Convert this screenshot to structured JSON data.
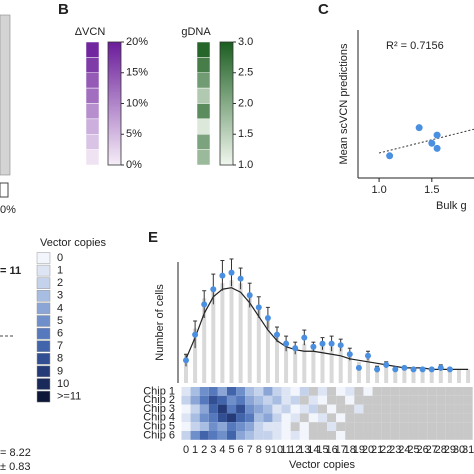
{
  "fragments": [
    "0%",
    "= 11",
    "= 8.22",
    "± 0.83"
  ],
  "chart_data": [
    {
      "type": "colorbar",
      "label": "B",
      "title": "ΔVCN",
      "ylim": [
        0,
        20
      ],
      "yticks": [
        {
          "value": 20,
          "label": "20%"
        },
        {
          "value": 15,
          "label": "15%"
        },
        {
          "value": 10,
          "label": "10%"
        },
        {
          "value": 5,
          "label": "5%"
        },
        {
          "value": 0,
          "label": "0%"
        }
      ],
      "values": [
        19,
        17,
        14,
        12,
        9,
        6,
        4,
        1
      ],
      "colors": [
        "#f6eef8",
        "#6a1b9a"
      ]
    },
    {
      "type": "colorbar",
      "title": "gDNA",
      "ylim": [
        1.0,
        3.0
      ],
      "yticks": [
        {
          "value": 3.0,
          "label": "3.0"
        },
        {
          "value": 2.5,
          "label": "2.5"
        },
        {
          "value": 2.0,
          "label": "2.0"
        },
        {
          "value": 1.5,
          "label": "1.5"
        },
        {
          "value": 1.0,
          "label": "1.0"
        }
      ],
      "values": [
        2.9,
        2.6,
        2.2,
        1.6,
        2.4,
        1.2,
        2.1,
        1.8
      ],
      "colors": [
        "#f1f7ee",
        "#1b5e20"
      ]
    },
    {
      "type": "scatter",
      "label": "C",
      "y_label": "Mean scVCN predictions",
      "x_label": "Bulk g",
      "annotation": "R² = 0.7156",
      "color": "#4a8fe0",
      "x": [
        1.1,
        1.38,
        1.5,
        1.55,
        1.55
      ],
      "values": [
        1.2,
        1.58,
        1.37,
        1.3,
        1.48
      ],
      "xlim": [
        0.8,
        1.9
      ],
      "ylim": [
        0.9,
        2.9
      ],
      "xticks": [
        {
          "value": 1.0,
          "label": "1.0"
        },
        1.5
      ]
    },
    {
      "type": "bar",
      "label": "E",
      "y_label": "Number of cells",
      "x_label": "Vector copies",
      "categories": [
        "0",
        "1",
        "2",
        "3",
        "4",
        "5",
        "6",
        "7",
        "8",
        "9",
        "10",
        "11",
        "12",
        "13",
        "14",
        "15",
        "16",
        "17",
        "18",
        "19",
        "20",
        "21",
        "22",
        "23",
        "24",
        "25",
        "26",
        "27",
        "28",
        "29",
        "30",
        "31"
      ],
      "ylim": [
        0,
        8
      ],
      "bar_color": "#d9d9d9",
      "point_color": "#4a8fe0",
      "line_color": "#222222",
      "values": [
        1.9,
        3.6,
        5.6,
        6.2,
        6.6,
        6.8,
        6.6,
        6.0,
        5.0,
        4.2,
        3.2,
        2.8,
        2.5,
        2.6,
        2.5,
        2.6,
        2.4,
        2.3,
        2.0,
        1.4,
        1.7,
        1.2,
        1.3,
        1.1,
        1.1,
        1.0,
        1.0,
        1.0,
        1.0,
        1.0,
        0.9,
        0.9
      ],
      "fit": [
        1.6,
        3.0,
        4.6,
        5.7,
        6.2,
        6.3,
        6.0,
        5.3,
        4.4,
        3.5,
        2.8,
        2.4,
        2.2,
        2.1,
        2.1,
        2.0,
        1.9,
        1.8,
        1.6,
        1.5,
        1.4,
        1.3,
        1.2,
        1.1,
        1.0,
        1.0,
        1.0,
        0.9,
        0.9,
        0.9,
        0.9,
        0.9
      ],
      "means": [
        1.5,
        3.2,
        5.2,
        6.2,
        7.1,
        7.3,
        6.9,
        5.8,
        5.0,
        4.3,
        3.2,
        2.6,
        2.3,
        3.0,
        2.4,
        2.6,
        2.6,
        2.5,
        1.9,
        1.0,
        1.8,
        0.9,
        1.2,
        0.9,
        1.0,
        0.9,
        0.9,
        0.9,
        1.0,
        0.9,
        null,
        null
      ],
      "errors": [
        0.4,
        0.9,
        0.9,
        1.0,
        1.0,
        0.9,
        0.7,
        0.8,
        0.7,
        0.7,
        0.5,
        0.5,
        0.4,
        0.5,
        0.3,
        0.4,
        0.5,
        0.4,
        0.4,
        0.1,
        0.3,
        0.2,
        0.2,
        0.1,
        0.1,
        0.1,
        0.1,
        0.1,
        0.2,
        0.1,
        null,
        null
      ],
      "rows": [
        "Chip 1",
        "Chip 2",
        "Chip 3",
        "Chip 4",
        "Chip 5",
        "Chip 6"
      ],
      "heatmap": [
        [
          1,
          3,
          5,
          6,
          4,
          7,
          5,
          3,
          2,
          4,
          2,
          1,
          0,
          2,
          null,
          1,
          null,
          0,
          1,
          null,
          0,
          null,
          null,
          null,
          null,
          null,
          null,
          null,
          null,
          null,
          null,
          null
        ],
        [
          2,
          4,
          6,
          8,
          7,
          5,
          6,
          4,
          3,
          2,
          3,
          1,
          2,
          null,
          1,
          0,
          null,
          null,
          0,
          null,
          null,
          null,
          null,
          null,
          null,
          null,
          null,
          null,
          null,
          null,
          null,
          null
        ],
        [
          0,
          2,
          4,
          7,
          9,
          6,
          8,
          5,
          4,
          3,
          1,
          2,
          0,
          1,
          2,
          null,
          0,
          null,
          null,
          1,
          null,
          null,
          null,
          null,
          null,
          null,
          null,
          null,
          null,
          null,
          null,
          null
        ],
        [
          1,
          3,
          5,
          6,
          8,
          9,
          7,
          6,
          3,
          4,
          2,
          0,
          1,
          null,
          0,
          1,
          null,
          0,
          null,
          null,
          null,
          null,
          null,
          null,
          null,
          null,
          null,
          null,
          null,
          null,
          null,
          null
        ],
        [
          0,
          2,
          3,
          5,
          4,
          6,
          5,
          4,
          2,
          1,
          1,
          0,
          null,
          0,
          null,
          null,
          1,
          null,
          null,
          null,
          null,
          null,
          null,
          null,
          null,
          null,
          null,
          null,
          null,
          null,
          null,
          null
        ],
        [
          2,
          5,
          7,
          6,
          5,
          7,
          4,
          3,
          2,
          2,
          1,
          0,
          1,
          0,
          null,
          null,
          null,
          0,
          null,
          null,
          null,
          null,
          null,
          null,
          null,
          null,
          null,
          null,
          null,
          null,
          null,
          null
        ]
      ],
      "missing_color": "#c8c8c8",
      "heatmap_legend": {
        "title": "Vector copies",
        "labels": [
          "0",
          "1",
          "2",
          "3",
          "4",
          "5",
          "6",
          "7",
          "8",
          "9",
          "10",
          ">=11"
        ],
        "colors": [
          "#f2f5fb",
          "#dde5f4",
          "#c4d2ec",
          "#a8bde2",
          "#8ba6d6",
          "#6f8fcb",
          "#5679bd",
          "#4264ab",
          "#324f93",
          "#243b77",
          "#18295a",
          "#0d1838"
        ]
      }
    }
  ]
}
